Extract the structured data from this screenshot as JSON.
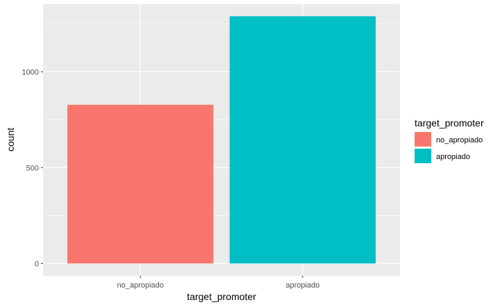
{
  "chart_data": {
    "type": "bar",
    "categories": [
      "no_apropiado",
      "apropiado"
    ],
    "values": [
      828,
      1290
    ],
    "xlabel": "target_promoter",
    "ylabel": "count",
    "ylim": [
      -64,
      1353
    ],
    "y_ticks": [
      0,
      500,
      1000
    ],
    "y_tick_labels": [
      "0",
      "500",
      "1000"
    ],
    "grid": true,
    "legend": {
      "title": "target_promoter",
      "position": "right",
      "entries": [
        {
          "label": "no_apropiado",
          "color": "#F8766D"
        },
        {
          "label": "apropiado",
          "color": "#00BFC4"
        }
      ]
    },
    "colors": [
      "#F8766D",
      "#00BFC4"
    ],
    "panel_background": "#EBEBEB",
    "gridline_color": "#FFFFFF"
  }
}
